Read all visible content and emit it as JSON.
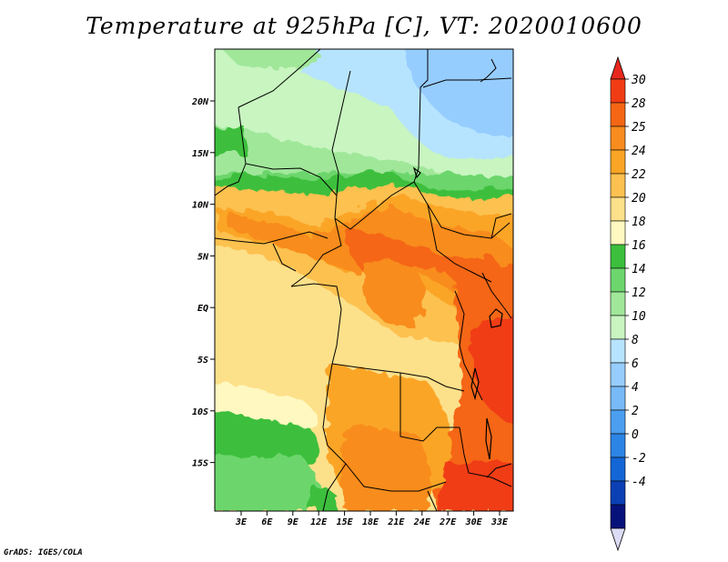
{
  "title": "Temperature at 925hPa [C], VT: 2020010600",
  "credit": "GrADS: IGES/COLA",
  "map": {
    "lon_ticks": [
      "3E",
      "6E",
      "9E",
      "12E",
      "15E",
      "18E",
      "21E",
      "24E",
      "27E",
      "30E",
      "33E"
    ],
    "lat_ticks": [
      "20N",
      "15N",
      "10N",
      "5N",
      "EQ",
      "5S",
      "10S",
      "15S"
    ]
  },
  "colorbar": {
    "labels": [
      "30",
      "28",
      "25",
      "24",
      "22",
      "20",
      "18",
      "16",
      "14",
      "12",
      "10",
      "8",
      "6",
      "4",
      "2",
      "0",
      "-2",
      "-4"
    ],
    "colors": [
      "#f03c14",
      "#f56614",
      "#f88c1e",
      "#fba526",
      "#fcc150",
      "#fde08a",
      "#fff8c0",
      "#3cbf3c",
      "#6cd66c",
      "#a0e79a",
      "#c8f5c0",
      "#b6e4ff",
      "#96cdff",
      "#78b9f8",
      "#4c9ff0",
      "#2c84e4",
      "#1466d6",
      "#0a40b4",
      "#06127a"
    ],
    "top_color": "#e8281e",
    "bottom_color": "#dcdcf6"
  }
}
